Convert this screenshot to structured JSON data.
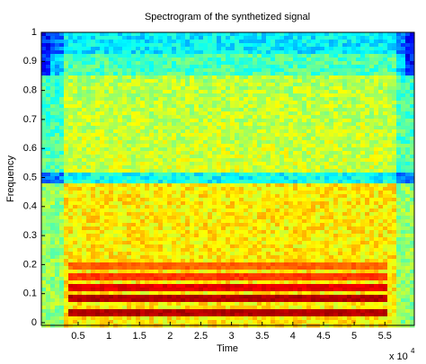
{
  "chart_data": {
    "type": "spectrogram",
    "title": "Spectrogram of the synthetized signal",
    "xlabel": "Time",
    "ylabel": "Frequency",
    "x_multiplier": "x 10",
    "x_exponent": "4",
    "xlim": [
      -1000,
      59800
    ],
    "ylim": [
      0,
      1
    ],
    "xticks": [
      {
        "value": 5000,
        "label": "0.5"
      },
      {
        "value": 10000,
        "label": "1"
      },
      {
        "value": 15000,
        "label": "1.5"
      },
      {
        "value": 20000,
        "label": "2"
      },
      {
        "value": 25000,
        "label": "2.5"
      },
      {
        "value": 30000,
        "label": "3"
      },
      {
        "value": 35000,
        "label": "3.5"
      },
      {
        "value": 40000,
        "label": "4"
      },
      {
        "value": 45000,
        "label": "4.5"
      },
      {
        "value": 50000,
        "label": "5"
      },
      {
        "value": 55000,
        "label": "5.5"
      }
    ],
    "yticks": [
      0,
      0.1,
      0.2,
      0.3,
      0.4,
      0.5,
      0.6,
      0.7,
      0.8,
      0.9,
      1
    ]
  }
}
